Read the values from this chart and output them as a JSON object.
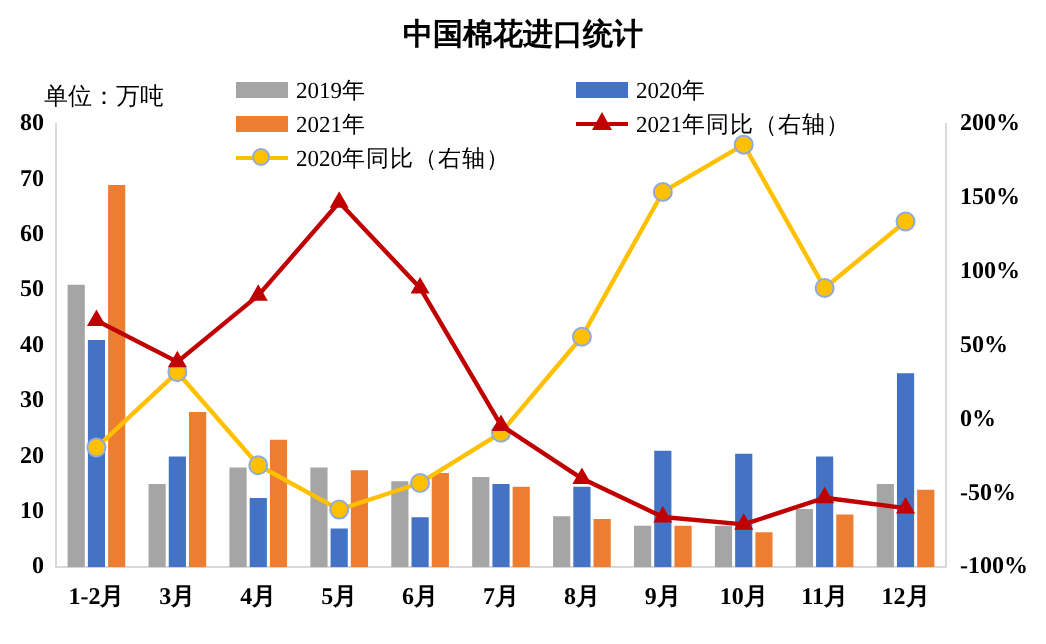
{
  "chart_data": {
    "type": "bar",
    "title": "中国棉花进口统计",
    "ylabel": "单位：万吨",
    "categories": [
      "1-2月",
      "3月",
      "4月",
      "5月",
      "6月",
      "7月",
      "8月",
      "9月",
      "10月",
      "11月",
      "12月"
    ],
    "series": [
      {
        "name": "2019年",
        "color": "#a5a5a5",
        "values": [
          51,
          15,
          18,
          18,
          15.5,
          16.3,
          9.2,
          7.5,
          7.5,
          10.5,
          15
        ]
      },
      {
        "name": "2020年",
        "color": "#4472c4",
        "values": [
          41,
          20,
          12.5,
          7,
          9,
          15,
          14.5,
          21,
          20.5,
          20,
          35
        ]
      },
      {
        "name": "2021年",
        "color": "#ed7d31",
        "values": [
          69,
          28,
          23,
          17.5,
          17,
          14.5,
          8.7,
          7.5,
          6.3,
          9.5,
          14
        ]
      },
      {
        "name": "2021年同比（右轴）",
        "type": "line",
        "axis": "y2",
        "marker": "triangle",
        "color": "#c00000",
        "values": [
          67,
          39,
          84,
          147,
          89,
          -4,
          -40,
          -66,
          -71,
          -53,
          -60
        ]
      },
      {
        "name": "2020年同比（右轴）",
        "type": "line",
        "axis": "y2",
        "marker": "circle",
        "color": "#ffc000",
        "values": [
          -19,
          32,
          -31,
          -61,
          -43,
          -9,
          56,
          154,
          186,
          89,
          134
        ]
      }
    ],
    "ylim": [
      0,
      80
    ],
    "yticks": [
      0,
      10,
      20,
      30,
      40,
      50,
      60,
      70,
      80
    ],
    "y2lim": [
      -100,
      200
    ],
    "y2ticks": [
      {
        "value": -100,
        "label": "-100%"
      },
      {
        "value": -50,
        "label": "-50%"
      },
      {
        "value": 0,
        "label": "0%"
      },
      {
        "value": 50,
        "label": "50%"
      },
      {
        "value": 100,
        "label": "100%"
      },
      {
        "value": 150,
        "label": "150%"
      },
      {
        "value": 200,
        "label": "200%"
      }
    ],
    "grid": false,
    "legend": "top"
  }
}
